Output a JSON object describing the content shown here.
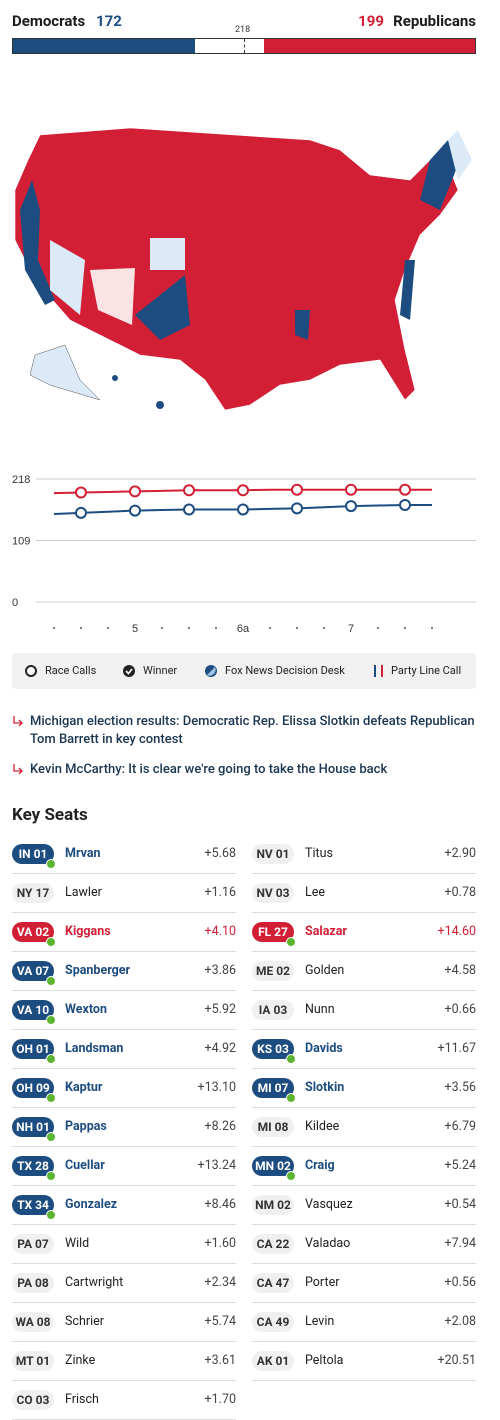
{
  "header": {
    "dem_label": "Democrats",
    "dem_count": 172,
    "majority": 218,
    "rep_count": 199,
    "rep_label": "Republicans"
  },
  "chart_data": {
    "type": "line",
    "categories": [
      null,
      null,
      null,
      "5",
      null,
      null,
      null,
      "6a",
      null,
      null,
      null,
      "7",
      null,
      null,
      null
    ],
    "series": [
      {
        "name": "Republicans",
        "color": "#d21f35",
        "values": [
          193,
          194,
          195,
          196,
          197,
          198,
          198,
          198,
          199,
          199,
          199,
          199,
          199,
          199,
          199
        ]
      },
      {
        "name": "Democrats",
        "color": "#1d4d80",
        "values": [
          156,
          158,
          160,
          162,
          163,
          164,
          164,
          164,
          165,
          166,
          168,
          170,
          171,
          172,
          172
        ]
      }
    ],
    "ylim": [
      0,
      218
    ],
    "yticks": [
      0,
      109,
      218
    ],
    "grid": true
  },
  "legend": [
    "Race Calls",
    "Winner",
    "Fox News Decision Desk",
    "Party Line Call"
  ],
  "headlines": [
    "Michigan election results: Democratic Rep. Elissa Slotkin defeats Republican Tom Barrett in key contest",
    "Kevin McCarthy: It is clear we're going to take the House back"
  ],
  "key_seats": {
    "title": "Key Seats",
    "left": [
      {
        "district": "IN 01",
        "name": "Mrvan",
        "margin": "+5.68",
        "called": "dem"
      },
      {
        "district": "NY 17",
        "name": "Lawler",
        "margin": "+1.16",
        "called": null
      },
      {
        "district": "VA 02",
        "name": "Kiggans",
        "margin": "+4.10",
        "called": "rep"
      },
      {
        "district": "VA 07",
        "name": "Spanberger",
        "margin": "+3.86",
        "called": "dem"
      },
      {
        "district": "VA 10",
        "name": "Wexton",
        "margin": "+5.92",
        "called": "dem"
      },
      {
        "district": "OH 01",
        "name": "Landsman",
        "margin": "+4.92",
        "called": "dem"
      },
      {
        "district": "OH 09",
        "name": "Kaptur",
        "margin": "+13.10",
        "called": "dem"
      },
      {
        "district": "NH 01",
        "name": "Pappas",
        "margin": "+8.26",
        "called": "dem"
      },
      {
        "district": "TX 28",
        "name": "Cuellar",
        "margin": "+13.24",
        "called": "dem"
      },
      {
        "district": "TX 34",
        "name": "Gonzalez",
        "margin": "+8.46",
        "called": "dem"
      },
      {
        "district": "PA 07",
        "name": "Wild",
        "margin": "+1.60",
        "called": null
      },
      {
        "district": "PA 08",
        "name": "Cartwright",
        "margin": "+2.34",
        "called": null
      },
      {
        "district": "WA 08",
        "name": "Schrier",
        "margin": "+5.74",
        "called": null
      },
      {
        "district": "MT 01",
        "name": "Zinke",
        "margin": "+3.61",
        "called": null
      },
      {
        "district": "CO 03",
        "name": "Frisch",
        "margin": "+1.70",
        "called": null
      }
    ],
    "right": [
      {
        "district": "NV 01",
        "name": "Titus",
        "margin": "+2.90",
        "called": null
      },
      {
        "district": "NV 03",
        "name": "Lee",
        "margin": "+0.78",
        "called": null
      },
      {
        "district": "FL 27",
        "name": "Salazar",
        "margin": "+14.60",
        "called": "rep"
      },
      {
        "district": "ME 02",
        "name": "Golden",
        "margin": "+4.58",
        "called": null
      },
      {
        "district": "IA 03",
        "name": "Nunn",
        "margin": "+0.66",
        "called": null
      },
      {
        "district": "KS 03",
        "name": "Davids",
        "margin": "+11.67",
        "called": "dem"
      },
      {
        "district": "MI 07",
        "name": "Slotkin",
        "margin": "+3.56",
        "called": "dem"
      },
      {
        "district": "MI 08",
        "name": "Kildee",
        "margin": "+6.79",
        "called": null
      },
      {
        "district": "MN 02",
        "name": "Craig",
        "margin": "+5.24",
        "called": "dem"
      },
      {
        "district": "NM 02",
        "name": "Vasquez",
        "margin": "+0.54",
        "called": null
      },
      {
        "district": "CA 22",
        "name": "Valadao",
        "margin": "+7.94",
        "called": null
      },
      {
        "district": "CA 47",
        "name": "Porter",
        "margin": "+0.56",
        "called": null
      },
      {
        "district": "CA 49",
        "name": "Levin",
        "margin": "+2.08",
        "called": null
      },
      {
        "district": "AK 01",
        "name": "Peltola",
        "margin": "+20.51",
        "called": null
      }
    ]
  }
}
